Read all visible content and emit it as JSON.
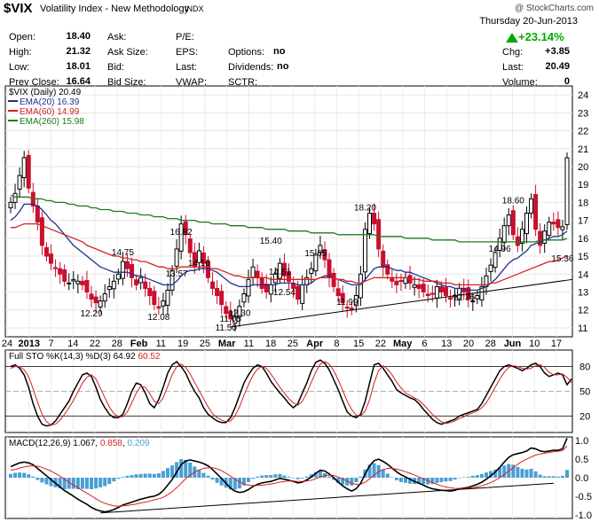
{
  "header": {
    "symbol": "$VIX",
    "name": "Volatility Index - New Methodology",
    "exchange": "INDX",
    "copyright": "@ StockCharts.com",
    "date": "Thursday  20-Jun-2013",
    "change_pct": "+23.14%",
    "quote_left": [
      {
        "label": "Open:",
        "value": "18.40"
      },
      {
        "label": "High:",
        "value": "21.32"
      },
      {
        "label": "Low:",
        "value": "18.01"
      },
      {
        "label": "Prev Close:",
        "value": "16.64"
      }
    ],
    "quote_mid_labels": [
      "Ask:",
      "Ask Size:",
      "Bid:",
      "Bid Size:"
    ],
    "quote_mid2": [
      {
        "label": "P/E:",
        "value": ""
      },
      {
        "label": "EPS:",
        "value": ""
      },
      {
        "label": "Last:",
        "value": ""
      },
      {
        "label": "VWAP:",
        "value": ""
      }
    ],
    "quote_mid3": [
      {
        "label": "Options:",
        "value": "no"
      },
      {
        "label": "Dividends:",
        "value": "no"
      },
      {
        "label": "SCTR:",
        "value": ""
      }
    ],
    "quote_right": [
      {
        "label": "Chg:",
        "value": "+3.85"
      },
      {
        "label": "Last:",
        "value": "20.49"
      },
      {
        "label": "Volume:",
        "value": "0"
      }
    ]
  },
  "colors": {
    "up": "#000000",
    "down": "#c8102e",
    "ema20": "#1f2f8c",
    "ema60": "#d62020",
    "ema260": "#1c7a1c",
    "macd_hist": "#4a9fd4"
  },
  "chart_data": [
    {
      "type": "candlestick",
      "legend": [
        {
          "text": "$VIX (Daily) 20.49",
          "color": "#000000"
        },
        {
          "text": "EMA(20) 16.39",
          "color": "#1f2f8c"
        },
        {
          "text": "EMA(60) 14.99",
          "color": "#d62020"
        },
        {
          "text": "EMA(260) 15.98",
          "color": "#1c7a1c"
        }
      ],
      "ylim": [
        10.5,
        24.5
      ],
      "yticks": [
        11,
        12,
        13,
        14,
        15,
        16,
        17,
        18,
        19,
        20,
        21,
        22,
        23,
        24
      ],
      "xticks": [
        "24",
        "2013",
        "7",
        "14",
        "22",
        "28",
        "Feb",
        "11",
        "19",
        "25",
        "Mar",
        "11",
        "18",
        "25",
        "Apr",
        "8",
        "15",
        "22",
        "May",
        "6",
        "13",
        "20",
        "28",
        "Jun",
        "10",
        "17"
      ],
      "annotations": [
        "12.29",
        "14.75",
        "12.08",
        "13.57",
        "16.82",
        "14.16",
        "11.50",
        "11.05",
        "12.30",
        "15.40",
        "14.61",
        "12.54",
        "15.65",
        "11.99",
        "18.20",
        "12.26",
        "18.60",
        "14.96",
        "15.36"
      ],
      "closes": [
        18.0,
        18.5,
        19.5,
        20.5,
        18.8,
        17.8,
        16.9,
        15.6,
        15.0,
        14.6,
        14.3,
        14.0,
        13.6,
        13.5,
        13.7,
        13.6,
        13.4,
        13.0,
        12.6,
        12.4,
        12.5,
        12.9,
        13.3,
        13.6,
        14.0,
        14.7,
        14.3,
        13.8,
        13.4,
        13.8,
        13.2,
        12.8,
        12.3,
        12.1,
        12.5,
        13.1,
        14.2,
        15.4,
        16.8,
        16.2,
        15.2,
        14.4,
        15.3,
        14.6,
        13.8,
        13.2,
        12.8,
        12.3,
        11.8,
        11.5,
        11.6,
        12.2,
        12.9,
        13.7,
        14.4,
        13.8,
        13.2,
        13.0,
        13.4,
        14.0,
        14.6,
        13.9,
        13.6,
        13.2,
        12.6,
        13.4,
        13.8,
        14.3,
        15.1,
        15.6,
        14.8,
        13.8,
        13.3,
        12.8,
        12.4,
        12.1,
        12.0,
        12.8,
        14.0,
        16.5,
        17.4,
        16.8,
        15.4,
        14.4,
        14.0,
        13.6,
        13.4,
        13.6,
        13.8,
        13.5,
        13.4,
        13.2,
        13.0,
        12.8,
        12.9,
        13.3,
        13.0,
        12.8,
        12.6,
        12.8,
        13.2,
        13.0,
        12.6,
        12.5,
        12.8,
        13.3,
        13.9,
        14.5,
        15.2,
        16.0,
        16.7,
        17.3,
        16.2,
        15.6,
        16.5,
        17.4,
        18.2,
        16.5,
        15.6,
        16.4,
        16.9,
        16.8,
        16.6,
        16.64,
        20.49
      ],
      "ema": [
        {
          "name": "EMA(20)",
          "values": [
            17.0,
            17.2,
            17.5,
            17.9,
            17.9,
            17.9,
            17.8,
            17.6,
            17.3,
            17.0,
            16.8,
            16.5,
            16.2,
            15.9,
            15.6,
            15.4,
            15.2,
            15.0,
            14.8,
            14.6,
            14.4,
            14.3,
            14.2,
            14.1,
            14.1,
            14.1,
            14.1,
            14.0,
            13.9,
            13.9,
            13.8,
            13.7,
            13.6,
            13.5,
            13.4,
            13.4,
            13.4,
            13.6,
            13.9,
            14.1,
            14.2,
            14.2,
            14.3,
            14.3,
            14.3,
            14.2,
            14.1,
            13.9,
            13.7,
            13.5,
            13.4,
            13.3,
            13.3,
            13.3,
            13.4,
            13.4,
            13.4,
            13.4,
            13.4,
            13.4,
            13.5,
            13.5,
            13.5,
            13.5,
            13.4,
            13.4,
            13.4,
            13.5,
            13.7,
            13.8,
            13.9,
            13.9,
            13.8,
            13.7,
            13.6,
            13.5,
            13.4,
            13.4,
            13.4,
            13.7,
            14.0,
            14.3,
            14.4,
            14.4,
            14.4,
            14.3,
            14.2,
            14.2,
            14.1,
            14.1,
            14.0,
            13.9,
            13.8,
            13.7,
            13.6,
            13.5,
            13.4,
            13.3,
            13.3,
            13.2,
            13.2,
            13.2,
            13.1,
            13.1,
            13.1,
            13.2,
            13.3,
            13.5,
            13.7,
            14.0,
            14.3,
            14.6,
            14.8,
            14.9,
            15.1,
            15.3,
            15.6,
            15.7,
            15.8,
            15.9,
            16.0,
            16.1,
            16.1,
            16.2,
            16.39
          ]
        },
        {
          "name": "EMA(60)",
          "values": [
            16.6,
            16.6,
            16.7,
            16.8,
            16.8,
            16.8,
            16.8,
            16.7,
            16.6,
            16.5,
            16.4,
            16.3,
            16.2,
            16.1,
            16.0,
            15.9,
            15.8,
            15.6,
            15.5,
            15.4,
            15.3,
            15.2,
            15.1,
            15.0,
            15.0,
            14.9,
            14.9,
            14.8,
            14.8,
            14.7,
            14.7,
            14.6,
            14.5,
            14.4,
            14.4,
            14.3,
            14.3,
            14.3,
            14.4,
            14.4,
            14.4,
            14.4,
            14.4,
            14.4,
            14.4,
            14.3,
            14.3,
            14.2,
            14.1,
            14.0,
            13.9,
            13.9,
            13.8,
            13.8,
            13.8,
            13.8,
            13.8,
            13.8,
            13.7,
            13.7,
            13.7,
            13.7,
            13.7,
            13.7,
            13.7,
            13.7,
            13.7,
            13.7,
            13.7,
            13.8,
            13.8,
            13.8,
            13.8,
            13.7,
            13.7,
            13.6,
            13.6,
            13.5,
            13.5,
            13.6,
            13.7,
            13.8,
            13.8,
            13.8,
            13.8,
            13.8,
            13.8,
            13.8,
            13.8,
            13.7,
            13.7,
            13.7,
            13.6,
            13.6,
            13.6,
            13.6,
            13.5,
            13.5,
            13.5,
            13.4,
            13.4,
            13.4,
            13.4,
            13.4,
            13.4,
            13.4,
            13.4,
            13.5,
            13.5,
            13.6,
            13.7,
            13.8,
            13.9,
            14.0,
            14.1,
            14.2,
            14.3,
            14.4,
            14.5,
            14.6,
            14.7,
            14.7,
            14.8,
            14.9,
            14.99
          ]
        },
        {
          "name": "EMA(260)",
          "values": [
            18.4,
            18.3,
            18.3,
            18.3,
            18.3,
            18.2,
            18.2,
            18.2,
            18.1,
            18.1,
            18.0,
            18.0,
            18.0,
            17.9,
            17.9,
            17.8,
            17.8,
            17.8,
            17.7,
            17.7,
            17.6,
            17.6,
            17.6,
            17.5,
            17.5,
            17.5,
            17.4,
            17.4,
            17.4,
            17.3,
            17.3,
            17.3,
            17.2,
            17.2,
            17.2,
            17.1,
            17.1,
            17.1,
            17.0,
            17.0,
            17.0,
            17.0,
            16.9,
            16.9,
            16.9,
            16.8,
            16.8,
            16.8,
            16.8,
            16.7,
            16.7,
            16.7,
            16.7,
            16.6,
            16.6,
            16.6,
            16.6,
            16.5,
            16.5,
            16.5,
            16.5,
            16.5,
            16.4,
            16.4,
            16.4,
            16.4,
            16.4,
            16.3,
            16.3,
            16.3,
            16.3,
            16.3,
            16.3,
            16.2,
            16.2,
            16.2,
            16.2,
            16.2,
            16.2,
            16.2,
            16.2,
            16.2,
            16.1,
            16.1,
            16.1,
            16.1,
            16.1,
            16.1,
            16.0,
            16.0,
            16.0,
            16.0,
            16.0,
            16.0,
            15.9,
            15.9,
            15.9,
            15.9,
            15.9,
            15.9,
            15.8,
            15.8,
            15.8,
            15.8,
            15.8,
            15.8,
            15.8,
            15.8,
            15.8,
            15.8,
            15.8,
            15.8,
            15.8,
            15.8,
            15.8,
            15.8,
            15.8,
            15.8,
            15.9,
            15.9,
            15.9,
            15.9,
            15.9,
            15.9,
            15.98
          ]
        }
      ]
    },
    {
      "type": "line",
      "legend": [
        {
          "text": "Full STO %K(14,3) %D(3) ",
          "color": "#000000"
        },
        {
          "text": "64.92",
          "color": "#000000"
        },
        {
          "text": "60.52",
          "color": "#d62020"
        }
      ],
      "ylim": [
        0,
        100
      ],
      "yticks": [
        20,
        50,
        80
      ],
      "k": [
        80,
        82,
        78,
        70,
        55,
        35,
        20,
        10,
        8,
        9,
        14,
        22,
        30,
        38,
        50,
        60,
        70,
        72,
        68,
        55,
        40,
        30,
        22,
        18,
        18,
        22,
        35,
        50,
        60,
        58,
        48,
        35,
        30,
        40,
        55,
        72,
        82,
        86,
        80,
        72,
        60,
        50,
        42,
        30,
        22,
        18,
        14,
        12,
        12,
        18,
        30,
        45,
        60,
        70,
        78,
        82,
        80,
        72,
        62,
        55,
        48,
        42,
        35,
        30,
        35,
        48,
        60,
        75,
        85,
        88,
        84,
        76,
        64,
        52,
        38,
        25,
        20,
        18,
        22,
        38,
        60,
        82,
        84,
        78,
        70,
        62,
        52,
        48,
        45,
        42,
        40,
        35,
        28,
        22,
        16,
        12,
        10,
        12,
        14,
        16,
        20,
        22,
        24,
        26,
        28,
        35,
        45,
        55,
        65,
        75,
        80,
        82,
        80,
        78,
        75,
        78,
        82,
        84,
        80,
        72,
        68,
        70,
        72,
        70,
        58,
        64.92
      ],
      "d": [
        78,
        80,
        80,
        76,
        68,
        53,
        37,
        22,
        13,
        9,
        10,
        15,
        22,
        30,
        39,
        49,
        60,
        67,
        70,
        65,
        54,
        42,
        31,
        23,
        19,
        19,
        25,
        36,
        48,
        56,
        55,
        47,
        38,
        35,
        42,
        56,
        70,
        80,
        83,
        79,
        71,
        61,
        51,
        41,
        31,
        23,
        18,
        15,
        13,
        14,
        20,
        31,
        45,
        58,
        69,
        77,
        80,
        78,
        71,
        63,
        55,
        48,
        41,
        36,
        33,
        38,
        48,
        61,
        73,
        83,
        86,
        83,
        75,
        64,
        51,
        38,
        28,
        21,
        20,
        26,
        40,
        60,
        75,
        81,
        77,
        70,
        61,
        54,
        48,
        45,
        42,
        39,
        34,
        28,
        22,
        17,
        13,
        11,
        12,
        14,
        17,
        19,
        22,
        24,
        26,
        30,
        36,
        45,
        55,
        65,
        73,
        79,
        81,
        80,
        78,
        77,
        78,
        81,
        82,
        79,
        73,
        70,
        70,
        71,
        67,
        60.52
      ]
    },
    {
      "type": "line",
      "legend": [
        {
          "text": "MACD(12,26,9) ",
          "color": "#000000"
        },
        {
          "text": "1.067",
          "color": "#000000"
        },
        {
          "text": ", ",
          "color": "#000000"
        },
        {
          "text": "0.858",
          "color": "#d62020"
        },
        {
          "text": ", ",
          "color": "#000000"
        },
        {
          "text": "0.209",
          "color": "#4a9fd4"
        }
      ],
      "ylim": [
        -1.1,
        1.1
      ],
      "yticks": [
        -1.0,
        -0.5,
        0.0,
        0.5,
        1.0
      ],
      "macd": [
        0.3,
        0.35,
        0.4,
        0.42,
        0.4,
        0.35,
        0.25,
        0.15,
        0.05,
        -0.05,
        -0.15,
        -0.25,
        -0.35,
        -0.42,
        -0.5,
        -0.58,
        -0.65,
        -0.72,
        -0.8,
        -0.86,
        -0.9,
        -0.92,
        -0.9,
        -0.86,
        -0.8,
        -0.74,
        -0.7,
        -0.66,
        -0.62,
        -0.58,
        -0.55,
        -0.52,
        -0.5,
        -0.45,
        -0.35,
        -0.2,
        -0.05,
        0.15,
        0.35,
        0.45,
        0.48,
        0.45,
        0.42,
        0.38,
        0.32,
        0.22,
        0.1,
        -0.02,
        -0.15,
        -0.28,
        -0.36,
        -0.4,
        -0.38,
        -0.32,
        -0.24,
        -0.18,
        -0.14,
        -0.12,
        -0.1,
        -0.06,
        -0.02,
        -0.04,
        -0.07,
        -0.1,
        -0.14,
        -0.12,
        -0.06,
        0.02,
        0.12,
        0.2,
        0.18,
        0.1,
        0.0,
        -0.12,
        -0.22,
        -0.3,
        -0.36,
        -0.3,
        -0.15,
        0.1,
        0.32,
        0.46,
        0.5,
        0.44,
        0.36,
        0.26,
        0.16,
        0.08,
        0.02,
        -0.04,
        -0.1,
        -0.15,
        -0.2,
        -0.26,
        -0.3,
        -0.32,
        -0.34,
        -0.35,
        -0.36,
        -0.34,
        -0.3,
        -0.28,
        -0.26,
        -0.22,
        -0.18,
        -0.12,
        -0.04,
        0.05,
        0.15,
        0.28,
        0.42,
        0.55,
        0.62,
        0.65,
        0.68,
        0.72,
        0.8,
        0.78,
        0.72,
        0.7,
        0.72,
        0.74,
        0.74,
        0.78,
        1.067
      ],
      "signal": [
        0.2,
        0.22,
        0.26,
        0.29,
        0.31,
        0.32,
        0.31,
        0.28,
        0.23,
        0.18,
        0.11,
        0.04,
        -0.04,
        -0.12,
        -0.2,
        -0.27,
        -0.35,
        -0.42,
        -0.49,
        -0.57,
        -0.64,
        -0.69,
        -0.73,
        -0.76,
        -0.77,
        -0.76,
        -0.75,
        -0.73,
        -0.71,
        -0.68,
        -0.66,
        -0.63,
        -0.6,
        -0.57,
        -0.53,
        -0.46,
        -0.38,
        -0.27,
        -0.15,
        -0.03,
        0.07,
        0.15,
        0.21,
        0.25,
        0.27,
        0.27,
        0.24,
        0.19,
        0.12,
        0.04,
        -0.04,
        -0.11,
        -0.17,
        -0.2,
        -0.21,
        -0.21,
        -0.2,
        -0.19,
        -0.17,
        -0.15,
        -0.12,
        -0.1,
        -0.09,
        -0.09,
        -0.1,
        -0.1,
        -0.09,
        -0.07,
        -0.03,
        0.02,
        0.06,
        0.07,
        0.06,
        0.02,
        -0.03,
        -0.09,
        -0.15,
        -0.18,
        -0.18,
        -0.12,
        -0.03,
        0.07,
        0.16,
        0.22,
        0.25,
        0.25,
        0.23,
        0.2,
        0.16,
        0.12,
        0.07,
        0.02,
        -0.03,
        -0.08,
        -0.13,
        -0.18,
        -0.22,
        -0.25,
        -0.27,
        -0.29,
        -0.29,
        -0.29,
        -0.28,
        -0.27,
        -0.25,
        -0.22,
        -0.18,
        -0.13,
        -0.07,
        0.0,
        0.09,
        0.18,
        0.27,
        0.36,
        0.44,
        0.5,
        0.56,
        0.61,
        0.64,
        0.66,
        0.68,
        0.7,
        0.71,
        0.73,
        0.858
      ]
    }
  ]
}
